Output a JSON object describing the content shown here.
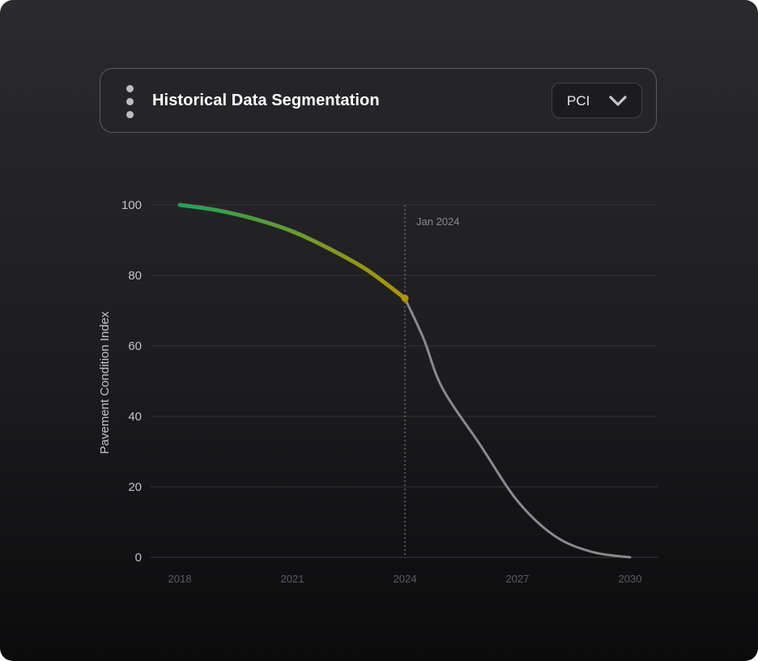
{
  "header": {
    "title": "Historical Data Segmentation",
    "metric_select": {
      "value": "PCI"
    },
    "menu_icon": "vertical-dots-icon",
    "dropdown_icon": "chevron-down-icon"
  },
  "colors": {
    "history_start": "#22a05a",
    "history_end": "#b0920a",
    "forecast": "#8a8a8e",
    "marker_line": "#55555a"
  },
  "chart_data": {
    "type": "line",
    "ylabel": "Pavement Condition Index",
    "xlabel": "",
    "ylim": [
      0,
      100
    ],
    "yticks": [
      0,
      20,
      40,
      60,
      80,
      100
    ],
    "xlim": [
      2018,
      2030
    ],
    "xticks": [
      "2018",
      "2021",
      "2024",
      "2027",
      "2030"
    ],
    "grid": true,
    "annotation": {
      "label": "Jan 2024",
      "x": 2024
    },
    "series": [
      {
        "segment": "historical",
        "x": [
          2018,
          2019,
          2020,
          2021,
          2022,
          2023,
          2024
        ],
        "y": [
          100,
          98.5,
          96,
          92.5,
          87.5,
          81.5,
          73.5
        ]
      },
      {
        "segment": "forecast",
        "x": [
          2024,
          2024.5,
          2025,
          2026,
          2027,
          2028,
          2029,
          2030
        ],
        "y": [
          73.5,
          62,
          48,
          32,
          16,
          6,
          1.5,
          0
        ]
      }
    ]
  }
}
